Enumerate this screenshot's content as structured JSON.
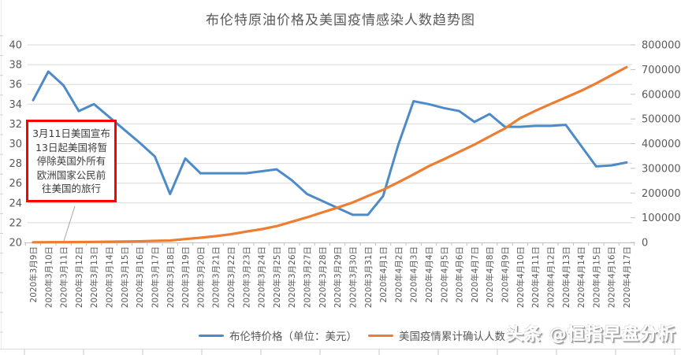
{
  "title": "布伦特原油价格及美国疫情感染人数趋势图",
  "watermark": "头条 @恒指早盘分析",
  "annotation": {
    "text": "3月11日美国宣布\n13日起美国将暂\n停除英国外所有\n欧洲国家公民前\n往美国的旅行",
    "border_color": "#ff0000",
    "points_to": "2020年3月11日"
  },
  "legend": [
    {
      "label": "布伦特价格（单位：美元）",
      "color": "#4d8bc8"
    },
    {
      "label": "美国疫情累计确认人数",
      "color": "#ed7d31"
    }
  ],
  "chart_data": {
    "type": "line",
    "title": "布伦特原油价格及美国疫情感染人数趋势图",
    "grid": true,
    "legend_position": "bottom",
    "categories": [
      "2020年3月9日",
      "2020年3月10日",
      "2020年3月11日",
      "2020年3月12日",
      "2020年3月13日",
      "2020年3月14日",
      "2020年3月15日",
      "2020年3月16日",
      "2020年3月17日",
      "2020年3月18日",
      "2020年3月19日",
      "2020年3月20日",
      "2020年3月21日",
      "2020年3月22日",
      "2020年3月23日",
      "2020年3月24日",
      "2020年3月25日",
      "2020年3月26日",
      "2020年3月27日",
      "2020年3月28日",
      "2020年3月29日",
      "2020年3月30日",
      "2020年3月31日",
      "2020年4月1日",
      "2020年4月2日",
      "2020年4月3日",
      "2020年4月4日",
      "2020年4月5日",
      "2020年4月6日",
      "2020年4月7日",
      "2020年4月8日",
      "2020年4月9日",
      "2020年4月10日",
      "2020年4月11日",
      "2020年4月12日",
      "2020年4月13日",
      "2020年4月14日",
      "2020年4月15日",
      "2020年4月16日",
      "2020年4月17日"
    ],
    "series": [
      {
        "name": "布伦特价格（单位：美元）",
        "axis": "left",
        "color": "#4d8bc8",
        "values": [
          34.4,
          37.3,
          35.9,
          33.3,
          34.0,
          32.7,
          31.4,
          30.1,
          28.7,
          24.9,
          28.5,
          27.0,
          27.0,
          27.0,
          27.0,
          27.2,
          27.4,
          26.3,
          24.9,
          24.2,
          23.5,
          22.8,
          22.8,
          24.7,
          29.9,
          34.3,
          34.0,
          33.6,
          33.3,
          32.2,
          33.0,
          31.7,
          31.7,
          31.8,
          31.8,
          31.9,
          29.8,
          27.7,
          27.8,
          28.1
        ]
      },
      {
        "name": "美国疫情累计确认人数",
        "axis": "right",
        "color": "#ed7d31",
        "values": [
          600,
          1000,
          1300,
          1700,
          2200,
          2700,
          3500,
          4600,
          6400,
          7800,
          13700,
          19100,
          25500,
          33300,
          43800,
          53700,
          65800,
          83800,
          101700,
          121500,
          140900,
          161800,
          188200,
          213400,
          243500,
          275600,
          308900,
          337100,
          366700,
          396200,
          429100,
          461400,
          502900,
          532900,
          560400,
          586900,
          613900,
          644100,
          677100,
          710000
        ]
      }
    ],
    "left_axis": {
      "min": 20,
      "max": 40,
      "step": 2,
      "ticks": [
        20,
        22,
        24,
        26,
        28,
        30,
        32,
        34,
        36,
        38,
        40
      ]
    },
    "right_axis": {
      "min": 0,
      "max": 800000,
      "step": 100000,
      "ticks": [
        0,
        100000,
        200000,
        300000,
        400000,
        500000,
        600000,
        700000,
        800000
      ]
    },
    "colors": {
      "gridline": "#d9d9d9",
      "axis_line": "#bfbfbf",
      "label": "#595959",
      "leader_line": "#a6a6a6"
    }
  }
}
